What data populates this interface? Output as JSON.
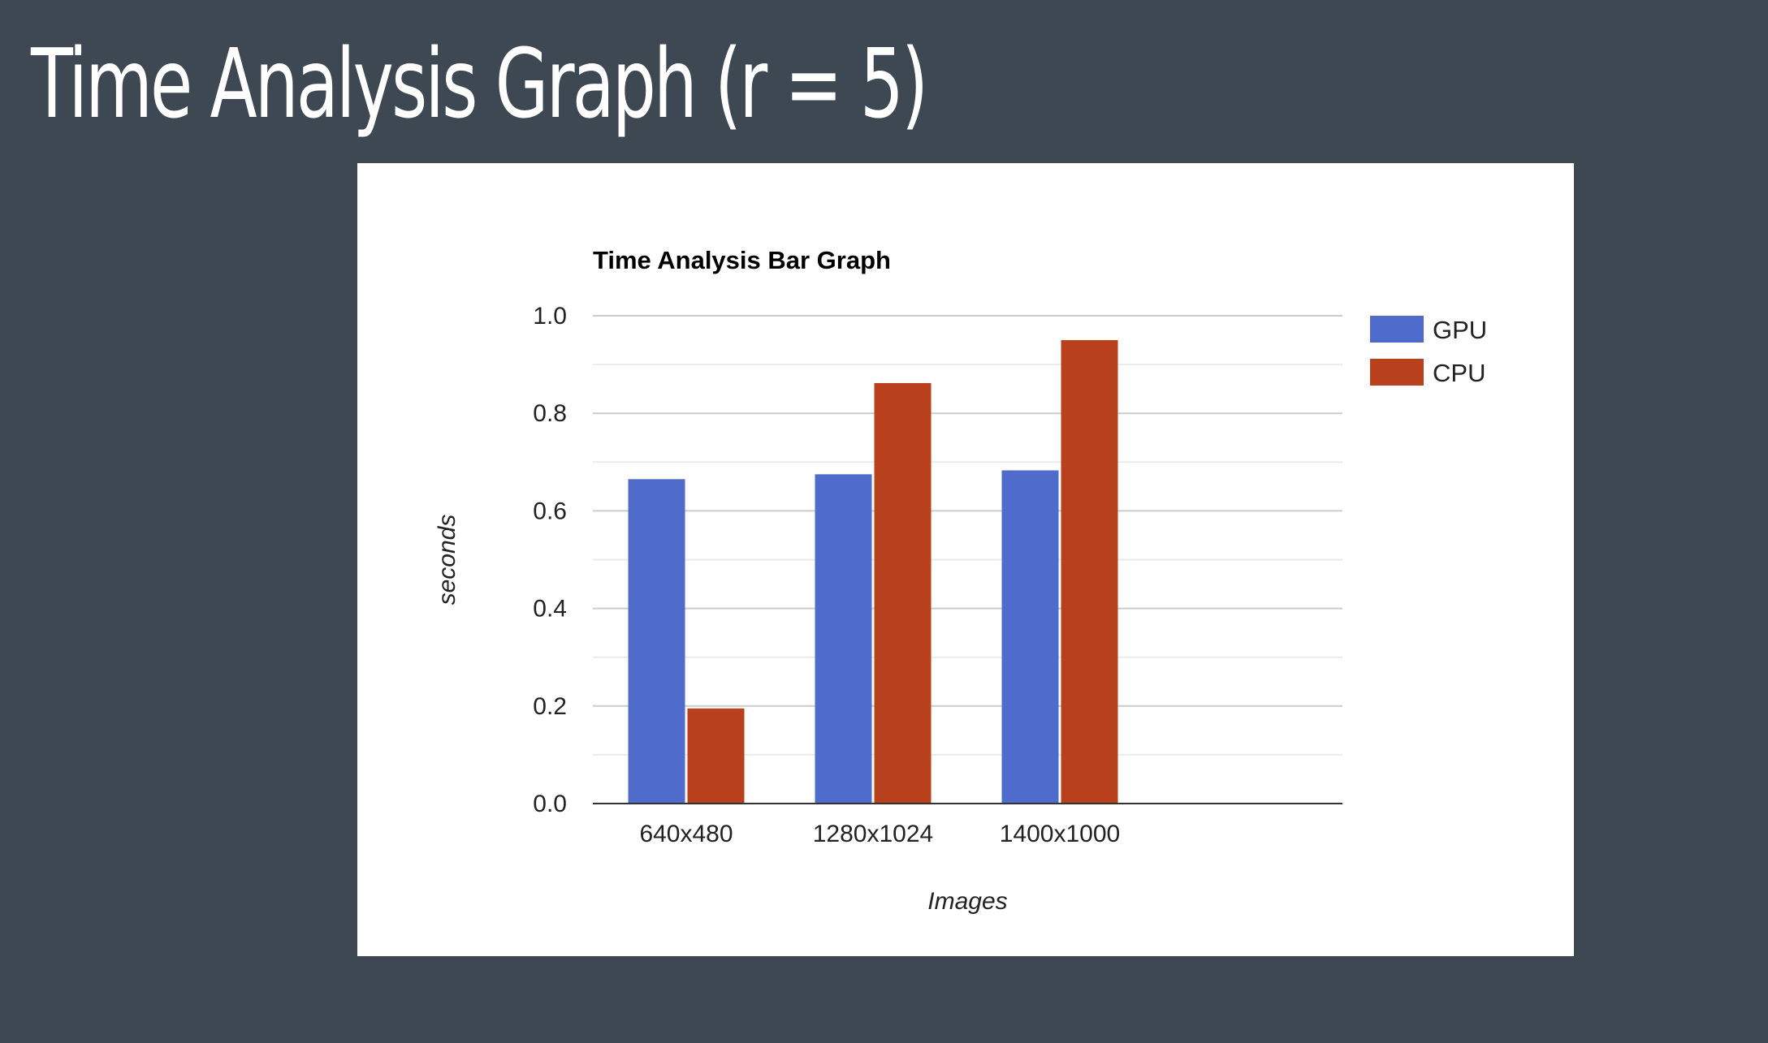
{
  "slide": {
    "title": "Time Analysis Graph (r = 5)"
  },
  "colors": {
    "background": "#3d4852",
    "card": "#ffffff",
    "gridline": "#cccccc",
    "minor_gridline": "#ebebeb",
    "axis": "#333333"
  },
  "chart_data": {
    "type": "bar",
    "title": "Time Analysis Bar Graph",
    "xlabel": "Images",
    "ylabel": "seconds",
    "categories": [
      "640x480",
      "1280x1024",
      "1400x1000"
    ],
    "series": [
      {
        "name": "GPU",
        "color": "#4f6bcc",
        "values": [
          0.665,
          0.675,
          0.683
        ]
      },
      {
        "name": "CPU",
        "color": "#b8401c",
        "values": [
          0.195,
          0.862,
          0.95
        ]
      }
    ],
    "ylim": [
      0,
      1
    ],
    "yticks": [
      "0.0",
      "0.2",
      "0.4",
      "0.6",
      "0.8",
      "1.0"
    ],
    "grid": true,
    "legend_position": "right"
  }
}
